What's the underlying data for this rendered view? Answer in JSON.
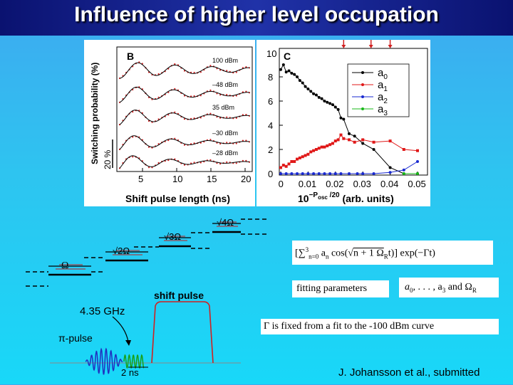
{
  "title": "Influence of higher level occupation",
  "citation": "J. Johansson et al., submitted",
  "panel_b": {
    "label": "B",
    "ylabel": "Switching probability (%)",
    "xlabel": "Shift pulse length (ns)",
    "scale_bar": "20 %",
    "xticks": [
      "5",
      "10",
      "15",
      "20"
    ],
    "curve_labels": [
      "100 dBm",
      "–48 dBm",
      "35 dBm",
      "–30 dBm",
      "–28 dBm"
    ]
  },
  "panel_c": {
    "label": "C",
    "ylabel_top": "10",
    "xlabel_prefix": "10",
    "xlabel_exp": "−P",
    "xlabel_sub": "osc",
    "xlabel_exp2": " /20",
    "xlabel_suffix": " (arb. units)",
    "yticks": [
      "0",
      "2",
      "4",
      "6",
      "8"
    ],
    "xticks": [
      "0",
      "0.01",
      "0.02",
      "0.03",
      "0.04",
      "0.05"
    ],
    "legend": [
      {
        "base": "a",
        "sub": "0",
        "color": "#000000"
      },
      {
        "base": "a",
        "sub": "1",
        "color": "#e01818"
      },
      {
        "base": "a",
        "sub": "2",
        "color": "#1a2ad0"
      },
      {
        "base": "a",
        "sub": "3",
        "color": "#18b818"
      }
    ]
  },
  "levels": {
    "omega_labels": [
      "Ω",
      "√2Ω",
      "√3Ω",
      "√4Ω"
    ]
  },
  "pulse": {
    "shift_pulse": "shift pulse",
    "frequency": "4.35 GHz",
    "pi_pulse": "π-pulse",
    "duration": "2 ns"
  },
  "formula": {
    "sum": "[∑",
    "sum_sup": "3",
    "sum_sub": "n=0",
    "body": " a",
    "body_sub": "n",
    "cos": " cos(√",
    "nplus": "n + 1 Ω",
    "omega_sub": "R",
    "t": "t)] exp(−Γt)"
  },
  "fit_label": "fitting parameters",
  "fit_params_a": "a",
  "fit_params_sub0": "0",
  "fit_params_mid": ", . . . , a",
  "fit_params_sub3": "3",
  "fit_params_and": "  and  Ω",
  "fit_params_subR": "R",
  "gamma_note": "Γ  is  fixed  from  a  fit  to  the  -100  dBm  curve",
  "chart_data": {
    "type": "scatter",
    "xlabel": "10^(−Posc/20) (arb. units)",
    "xlim": [
      0,
      0.05
    ],
    "ylim": [
      0,
      10
    ],
    "series": [
      {
        "name": "a0",
        "color": "#000000",
        "x": [
          0.0,
          0.001,
          0.002,
          0.003,
          0.004,
          0.005,
          0.006,
          0.007,
          0.008,
          0.009,
          0.01,
          0.011,
          0.012,
          0.013,
          0.014,
          0.015,
          0.016,
          0.017,
          0.018,
          0.019,
          0.02,
          0.021,
          0.022,
          0.023,
          0.025,
          0.027,
          0.03,
          0.034,
          0.04,
          0.045,
          0.05
        ],
        "y": [
          8.6,
          9.0,
          8.4,
          8.5,
          8.3,
          8.2,
          8.0,
          7.7,
          7.5,
          7.2,
          7.0,
          6.8,
          6.6,
          6.5,
          6.3,
          6.2,
          6.0,
          5.9,
          5.8,
          5.7,
          5.5,
          5.3,
          4.6,
          4.5,
          3.3,
          3.1,
          2.5,
          2.0,
          0.5,
          0.0,
          0.0
        ]
      },
      {
        "name": "a1",
        "color": "#e01818",
        "x": [
          0.0,
          0.001,
          0.002,
          0.003,
          0.004,
          0.005,
          0.006,
          0.007,
          0.008,
          0.009,
          0.01,
          0.011,
          0.012,
          0.013,
          0.014,
          0.015,
          0.016,
          0.017,
          0.018,
          0.019,
          0.02,
          0.021,
          0.022,
          0.023,
          0.025,
          0.027,
          0.03,
          0.034,
          0.04,
          0.045,
          0.05
        ],
        "y": [
          0.5,
          0.7,
          0.6,
          0.8,
          1.0,
          1.0,
          1.2,
          1.3,
          1.4,
          1.5,
          1.6,
          1.8,
          1.9,
          2.0,
          2.1,
          2.2,
          2.2,
          2.3,
          2.4,
          2.5,
          2.7,
          2.8,
          3.2,
          2.9,
          2.8,
          2.6,
          2.8,
          2.6,
          2.7,
          2.0,
          1.9
        ]
      },
      {
        "name": "a2",
        "color": "#1a2ad0",
        "x": [
          0.0,
          0.002,
          0.004,
          0.006,
          0.008,
          0.01,
          0.012,
          0.014,
          0.016,
          0.018,
          0.02,
          0.022,
          0.025,
          0.028,
          0.03,
          0.034,
          0.04,
          0.045,
          0.05
        ],
        "y": [
          0.0,
          0.0,
          0.0,
          0.0,
          0.0,
          0.0,
          0.0,
          0.0,
          0.0,
          0.0,
          0.0,
          0.0,
          0.0,
          0.0,
          0.0,
          0.0,
          0.1,
          0.3,
          1.0
        ]
      },
      {
        "name": "a3",
        "color": "#18b818",
        "x": [
          0.045,
          0.05
        ],
        "y": [
          0.0,
          0.0
        ]
      }
    ]
  }
}
